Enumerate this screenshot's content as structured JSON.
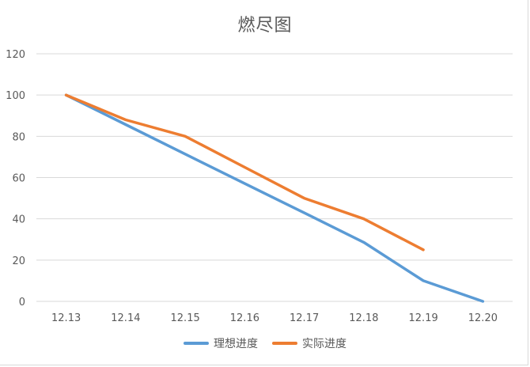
{
  "chart_data": {
    "type": "line",
    "title": "燃尽图",
    "xlabel": "",
    "ylabel": "",
    "categories": [
      "12.13",
      "12.14",
      "12.15",
      "12.16",
      "12.17",
      "12.18",
      "12.19",
      "12.20"
    ],
    "ylim": [
      0,
      120
    ],
    "yticks": [
      0,
      20,
      40,
      60,
      80,
      100,
      120
    ],
    "grid": "horizontal",
    "legend_position": "bottom",
    "series": [
      {
        "name": "理想进度",
        "color": "#5b9bd5",
        "values": [
          100,
          85.7,
          71.4,
          57.1,
          42.9,
          28.6,
          10,
          0
        ]
      },
      {
        "name": "实际进度",
        "color": "#ed7d31",
        "values": [
          100,
          88,
          80,
          65,
          50,
          40,
          25,
          null
        ]
      }
    ]
  }
}
